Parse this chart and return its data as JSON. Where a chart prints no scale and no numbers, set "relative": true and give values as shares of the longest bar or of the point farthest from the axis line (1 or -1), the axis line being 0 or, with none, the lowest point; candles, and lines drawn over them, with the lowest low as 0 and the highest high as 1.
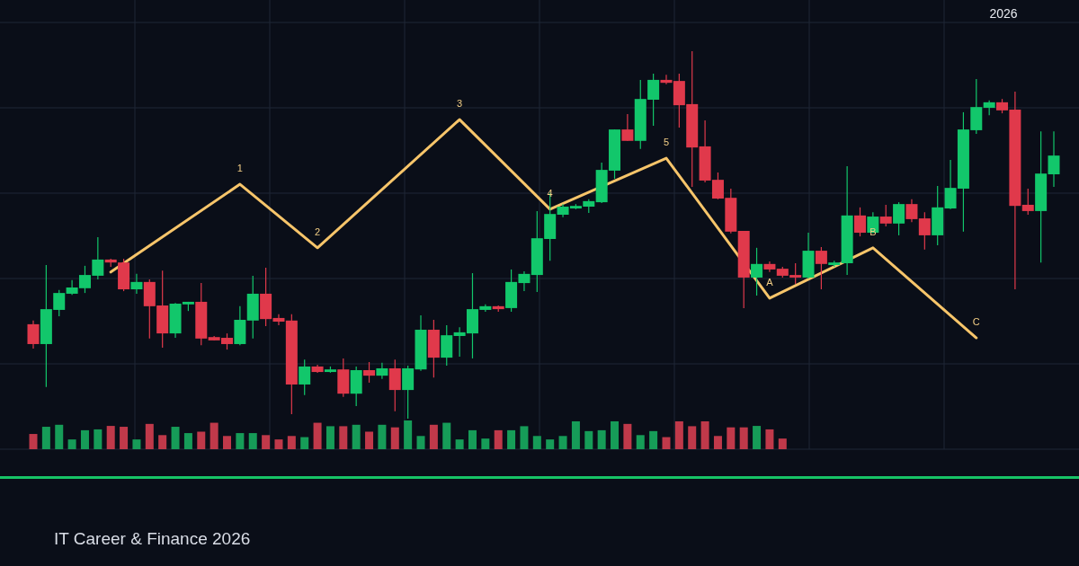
{
  "chart_data": [
    {
      "type": "candlestick",
      "subtitle": "IT Career & Finance 2026",
      "annotations": [
        "2026",
        {
          "text": "1",
          "y": 0.638
        },
        {
          "text": "2",
          "y": 0.465
        },
        {
          "text": "3",
          "y": 0.814
        },
        {
          "text": "4",
          "y": 0.57
        },
        {
          "text": "5",
          "y": 0.709
        },
        {
          "text": "A",
          "y": 0.328
        },
        {
          "text": "B",
          "y": 0.465
        },
        {
          "text": "C",
          "y": 0.22
        }
      ],
      "relative": true,
      "grid": true,
      "categories": [
        null,
        null,
        null,
        null,
        null,
        null,
        null,
        null,
        null,
        null,
        null,
        null,
        null,
        null,
        null,
        null,
        null,
        null,
        null,
        null,
        null,
        null,
        null,
        null,
        null,
        null,
        null,
        null,
        null,
        null,
        null,
        null,
        null,
        null,
        null,
        null,
        null,
        null,
        null,
        null,
        null,
        null,
        null,
        null,
        null,
        null,
        null,
        null,
        null,
        null,
        null,
        null,
        null,
        null,
        null,
        null,
        null,
        null,
        null,
        null,
        null,
        null,
        null,
        null,
        null,
        null,
        null,
        null,
        null,
        null,
        null,
        null,
        null,
        null,
        null,
        null,
        null,
        null,
        null,
        null
      ],
      "ohlc": [
        [
          0.257,
          0.267,
          0.191,
          0.203
        ],
        [
          0.203,
          0.418,
          0.086,
          0.298
        ],
        [
          0.296,
          0.35,
          0.279,
          0.342
        ],
        [
          0.34,
          0.377,
          0.337,
          0.357
        ],
        [
          0.355,
          0.416,
          0.342,
          0.391
        ],
        [
          0.389,
          0.494,
          0.379,
          0.433
        ],
        [
          0.433,
          0.435,
          0.413,
          0.425
        ],
        [
          0.425,
          0.435,
          0.347,
          0.352
        ],
        [
          0.352,
          0.394,
          0.34,
          0.372
        ],
        [
          0.372,
          0.379,
          0.218,
          0.306
        ],
        [
          0.308,
          0.403,
          0.193,
          0.232
        ],
        [
          0.232,
          0.315,
          0.22,
          0.313
        ],
        [
          0.311,
          0.318,
          0.293,
          0.318
        ],
        [
          0.318,
          0.369,
          0.2,
          0.218
        ],
        [
          0.222,
          0.225,
          0.213,
          0.213
        ],
        [
          0.22,
          0.232,
          0.188,
          0.203
        ],
        [
          0.203,
          0.306,
          0.2,
          0.269
        ],
        [
          0.267,
          0.389,
          0.218,
          0.34
        ],
        [
          0.34,
          0.411,
          0.252,
          0.271
        ],
        [
          0.274,
          0.284,
          0.254,
          0.264
        ],
        [
          0.267,
          0.284,
          0.012,
          0.093
        ],
        [
          0.093,
          0.161,
          0.064,
          0.142
        ],
        [
          0.142,
          0.147,
          0.125,
          0.127
        ],
        [
          0.127,
          0.142,
          0.125,
          0.134
        ],
        [
          0.134,
          0.164,
          0.059,
          0.068
        ],
        [
          0.068,
          0.142,
          0.034,
          0.132
        ],
        [
          0.132,
          0.154,
          0.098,
          0.117
        ],
        [
          0.117,
          0.152,
          0.108,
          0.137
        ],
        [
          0.137,
          0.161,
          0.02,
          0.078
        ],
        [
          0.078,
          0.144,
          0,
          0.137
        ],
        [
          0.134,
          0.281,
          0.13,
          0.242
        ],
        [
          0.242,
          0.269,
          0.112,
          0.166
        ],
        [
          0.166,
          0.254,
          0.144,
          0.227
        ],
        [
          0.225,
          0.249,
          0.169,
          0.235
        ],
        [
          0.232,
          0.396,
          0.164,
          0.298
        ],
        [
          0.296,
          0.311,
          0.291,
          0.306
        ],
        [
          0.306,
          0.308,
          0.291,
          0.298
        ],
        [
          0.301,
          0.406,
          0.291,
          0.372
        ],
        [
          0.369,
          0.401,
          0.347,
          0.394
        ],
        [
          0.391,
          0.565,
          0.345,
          0.491
        ],
        [
          0.489,
          0.614,
          0.43,
          0.557
        ],
        [
          0.555,
          0.584,
          0.548,
          0.577
        ],
        [
          0.572,
          0.584,
          0.57,
          0.579
        ],
        [
          0.577,
          0.597,
          0.56,
          0.592
        ],
        [
          0.589,
          0.697,
          0.587,
          0.677
        ],
        [
          0.675,
          0.787,
          0.653,
          0.787
        ],
        [
          0.787,
          0.829,
          0.756,
          0.756
        ],
        [
          0.756,
          0.922,
          0.734,
          0.87
        ],
        [
          0.868,
          0.939,
          0.797,
          0.922
        ],
        [
          0.922,
          0.936,
          0.91,
          0.914
        ],
        [
          0.919,
          0.939,
          0.792,
          0.853
        ],
        [
          0.856,
          1,
          0.631,
          0.738
        ],
        [
          0.741,
          0.812,
          0.643,
          0.648
        ],
        [
          0.65,
          0.67,
          0.597,
          0.599
        ],
        [
          0.601,
          0.626,
          0.504,
          0.509
        ],
        [
          0.511,
          0.511,
          0.301,
          0.384
        ],
        [
          0.384,
          0.465,
          0.335,
          0.421
        ],
        [
          0.421,
          0.428,
          0.399,
          0.406
        ],
        [
          0.408,
          0.413,
          0.384,
          0.389
        ],
        [
          0.391,
          0.423,
          0.367,
          0.384
        ],
        [
          0.384,
          0.506,
          0.381,
          0.457
        ],
        [
          0.457,
          0.467,
          0.352,
          0.421
        ],
        [
          0.418,
          0.43,
          0.413,
          0.425
        ],
        [
          0.423,
          0.687,
          0.391,
          0.553
        ],
        [
          0.553,
          0.575,
          0.496,
          0.506
        ],
        [
          0.506,
          0.562,
          0.504,
          0.55
        ],
        [
          0.55,
          0.582,
          0.523,
          0.531
        ],
        [
          0.531,
          0.589,
          0.499,
          0.584
        ],
        [
          0.584,
          0.597,
          0.535,
          0.543
        ],
        [
          0.545,
          0.562,
          0.46,
          0.499
        ],
        [
          0.499,
          0.633,
          0.472,
          0.575
        ],
        [
          0.572,
          0.704,
          0.57,
          0.628
        ],
        [
          0.626,
          0.834,
          0.509,
          0.787
        ],
        [
          0.785,
          0.924,
          0.775,
          0.848
        ],
        [
          0.846,
          0.866,
          0.826,
          0.861
        ],
        [
          0.861,
          0.87,
          0.831,
          0.839
        ],
        [
          0.841,
          0.89,
          0.352,
          0.579
        ],
        [
          0.582,
          0.626,
          0.555,
          0.565
        ],
        [
          0.565,
          0.782,
          0.425,
          0.667
        ],
        [
          0.665,
          0.782,
          0.631,
          0.716
        ]
      ],
      "series": [
        {
          "type": "line",
          "color": "#f7c56a",
          "values": [
            null,
            null,
            null,
            null,
            null,
            null,
            0.399,
            null,
            null,
            null,
            null,
            null,
            null,
            null,
            null,
            null,
            0.638,
            null,
            null,
            null,
            null,
            null,
            0.465,
            null,
            null,
            null,
            null,
            null,
            null,
            null,
            null,
            null,
            null,
            0.814,
            null,
            null,
            null,
            null,
            null,
            null,
            0.57,
            null,
            null,
            null,
            null,
            null,
            null,
            null,
            null,
            0.709,
            null,
            null,
            null,
            null,
            null,
            null,
            null,
            0.328,
            null,
            null,
            null,
            null,
            null,
            null,
            null,
            0.465,
            null,
            null,
            null,
            null,
            null,
            null,
            null,
            0.22,
            null,
            null,
            null,
            null,
            null,
            null
          ]
        }
      ]
    },
    {
      "type": "bar",
      "relative": true,
      "grid": true,
      "categories": [
        null,
        null,
        null,
        null,
        null,
        null,
        null,
        null,
        null,
        null,
        null,
        null,
        null,
        null,
        null,
        null,
        null,
        null,
        null,
        null,
        null,
        null,
        null,
        null,
        null,
        null,
        null,
        null,
        null,
        null,
        null,
        null,
        null,
        null,
        null,
        null,
        null,
        null,
        null,
        null,
        null,
        null,
        null,
        null,
        null,
        null,
        null,
        null,
        null,
        null,
        null,
        null,
        null,
        null,
        null,
        null,
        null,
        null,
        null,
        null,
        null,
        null,
        null,
        null,
        null,
        null,
        null,
        null,
        null,
        null,
        null,
        null,
        null,
        null,
        null,
        null,
        null,
        null,
        null,
        null
      ],
      "values": [
        0.53,
        0.78,
        0.85,
        0.34,
        0.66,
        0.69,
        0.81,
        0.78,
        0.34,
        0.88,
        0.49,
        0.78,
        0.56,
        0.61,
        0.92,
        0.46,
        0.56,
        0.56,
        0.49,
        0.34,
        0.46,
        0.42,
        0.92,
        0.8,
        0.8,
        0.85,
        0.61,
        0.85,
        0.76,
        1,
        0.46,
        0.85,
        0.92,
        0.34,
        0.66,
        0.37,
        0.66,
        0.66,
        0.8,
        0.46,
        0.34,
        0.46,
        0.97,
        0.63,
        0.66,
        0.97,
        0.88,
        0.49,
        0.63,
        0.42,
        0.97,
        0.8,
        0.97,
        0.46,
        0.76,
        0.76,
        0.81,
        0.69,
        0.37,
        null,
        null,
        null,
        null,
        null,
        null,
        null,
        null,
        null,
        null,
        null,
        null,
        null,
        null,
        null,
        null,
        null,
        null,
        null,
        null,
        null
      ],
      "colors": [
        "#c0394a",
        "#169c58",
        "#169c58",
        "#169c58",
        "#169c58",
        "#169c58",
        "#c0394a",
        "#c0394a",
        "#169c58",
        "#c0394a",
        "#c0394a",
        "#169c58",
        "#169c58",
        "#c0394a",
        "#c0394a",
        "#c0394a",
        "#169c58",
        "#169c58",
        "#c0394a",
        "#c0394a",
        "#c0394a",
        "#169c58",
        "#c0394a",
        "#169c58",
        "#c0394a",
        "#169c58",
        "#c0394a",
        "#169c58",
        "#c0394a",
        "#169c58",
        "#169c58",
        "#c0394a",
        "#169c58",
        "#169c58",
        "#169c58",
        "#169c58",
        "#c0394a",
        "#169c58",
        "#169c58",
        "#169c58",
        "#169c58",
        "#169c58",
        "#169c58",
        "#169c58",
        "#169c58",
        "#169c58",
        "#c0394a",
        "#169c58",
        "#169c58",
        "#c0394a",
        "#c0394a",
        "#c0394a",
        "#c0394a",
        "#c0394a",
        "#c0394a",
        "#c0394a",
        "#169c58",
        "#c0394a",
        "#c0394a",
        null,
        null,
        null,
        null,
        null,
        null,
        null,
        null,
        null,
        null,
        null,
        null,
        null,
        null,
        null,
        null,
        null,
        null,
        null,
        null,
        null
      ]
    }
  ]
}
